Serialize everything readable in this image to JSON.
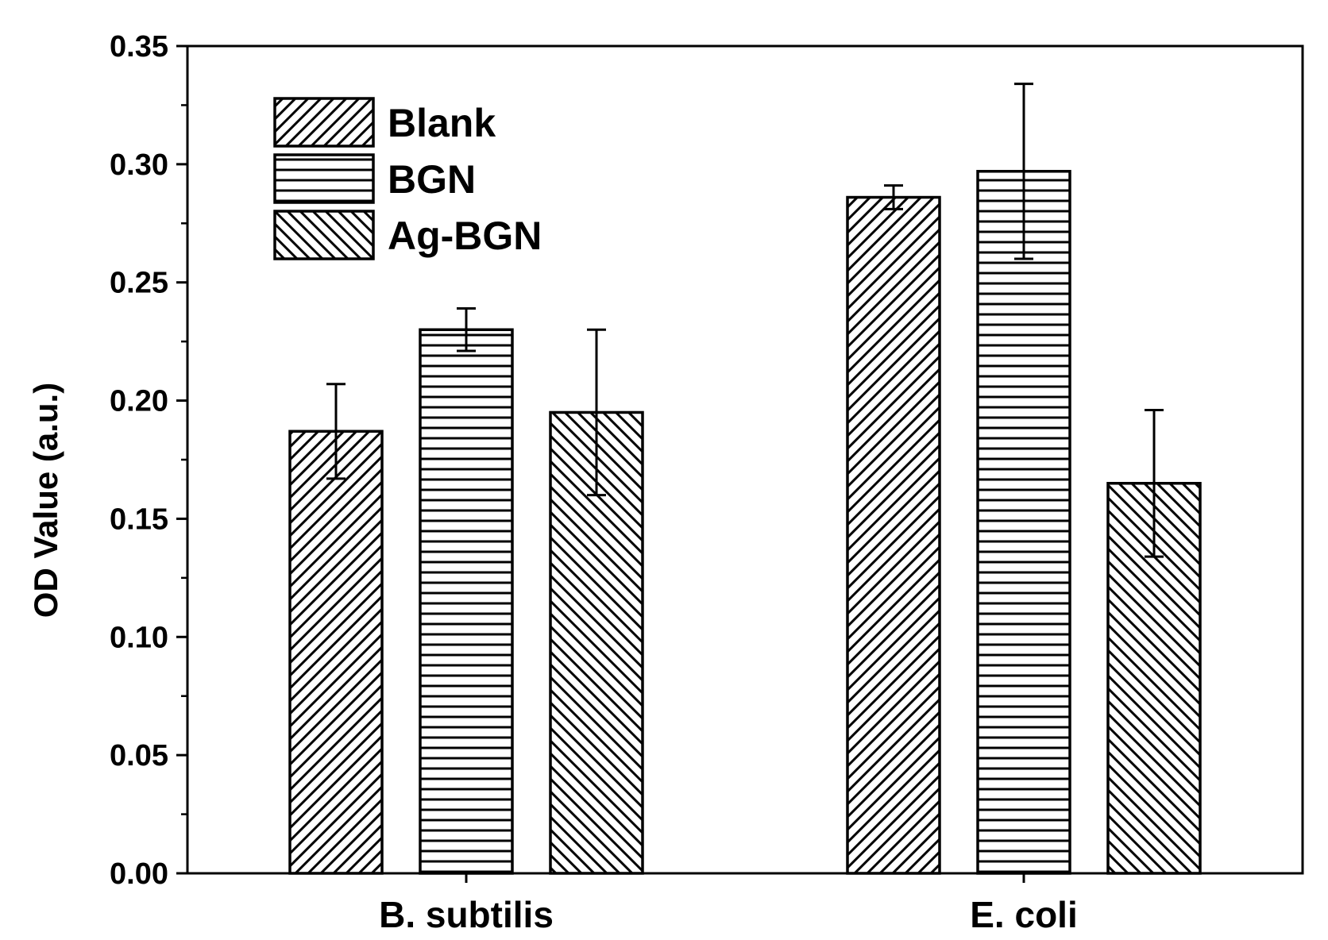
{
  "chart_data": {
    "type": "bar",
    "title": "",
    "xlabel": "",
    "ylabel": "OD Value (a.u.)",
    "ylim": [
      0,
      0.35
    ],
    "yticks": [
      "0.00",
      "0.05",
      "0.10",
      "0.15",
      "0.20",
      "0.25",
      "0.30",
      "0.35"
    ],
    "categories": [
      "B. subtilis",
      "E. coli"
    ],
    "series": [
      {
        "name": "Blank",
        "pattern": "diagonal-up",
        "values": [
          0.187,
          0.286
        ],
        "errors": [
          0.02,
          0.005
        ]
      },
      {
        "name": "BGN",
        "pattern": "horizontal",
        "values": [
          0.23,
          0.297
        ],
        "errors": [
          0.009,
          0.037
        ]
      },
      {
        "name": "Ag-BGN",
        "pattern": "diagonal-down",
        "values": [
          0.195,
          0.165
        ],
        "errors": [
          0.035,
          0.031
        ]
      }
    ],
    "legend_position": "top-left",
    "grid": false,
    "colors": {
      "stroke": "#000000",
      "fill": "#ffffff"
    }
  }
}
